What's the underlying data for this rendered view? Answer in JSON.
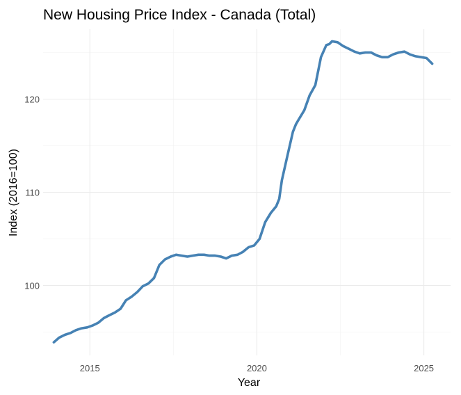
{
  "chart_data": {
    "type": "line",
    "title": "New Housing Price Index - Canada (Total)",
    "xlabel": "Year",
    "ylabel": "Index (2016=100)",
    "xlim": [
      2013.6,
      2025.8
    ],
    "ylim": [
      92.5,
      127.5
    ],
    "x_ticks": [
      2015,
      2020,
      2025
    ],
    "x_tick_labels": [
      "2015",
      "2020",
      "2025"
    ],
    "y_ticks": [
      100,
      110,
      120
    ],
    "y_tick_labels": [
      "100",
      "110",
      "120"
    ],
    "grid": true,
    "legend": "none",
    "line_color": "#4682b4",
    "series": [
      {
        "x": [
          2013.92,
          2014.08,
          2014.25,
          2014.42,
          2014.58,
          2014.75,
          2014.92,
          2015.08,
          2015.25,
          2015.42,
          2015.58,
          2015.75,
          2015.92,
          2016.08,
          2016.25,
          2016.42,
          2016.5,
          2016.58,
          2016.75,
          2016.92,
          2017.08,
          2017.25,
          2017.42,
          2017.58,
          2017.75,
          2017.92,
          2018.08,
          2018.25,
          2018.42,
          2018.58,
          2018.75,
          2018.92,
          2019.08,
          2019.25,
          2019.42,
          2019.58,
          2019.75,
          2019.92,
          2020.08,
          2020.25,
          2020.42,
          2020.58,
          2020.67,
          2020.75,
          2020.92,
          2021.08,
          2021.17,
          2021.25,
          2021.42,
          2021.58,
          2021.75,
          2021.92,
          2022.08,
          2022.17,
          2022.25,
          2022.42,
          2022.58,
          2022.75,
          2022.92,
          2023.08,
          2023.25,
          2023.42,
          2023.58,
          2023.75,
          2023.92,
          2024.08,
          2024.25,
          2024.42,
          2024.58,
          2024.75,
          2024.92,
          2025.08,
          2025.25
        ],
        "values": [
          93.9,
          94.4,
          94.7,
          94.9,
          95.2,
          95.4,
          95.5,
          95.7,
          96.0,
          96.5,
          96.8,
          97.1,
          97.5,
          98.4,
          98.8,
          99.3,
          99.6,
          99.9,
          100.2,
          100.8,
          102.2,
          102.8,
          103.1,
          103.3,
          103.2,
          103.1,
          103.2,
          103.3,
          103.3,
          103.2,
          103.2,
          103.1,
          102.9,
          103.2,
          103.3,
          103.6,
          104.1,
          104.3,
          105.0,
          106.8,
          107.8,
          108.5,
          109.3,
          111.3,
          114.0,
          116.5,
          117.3,
          117.8,
          118.8,
          120.4,
          121.5,
          124.5,
          125.8,
          125.9,
          126.2,
          126.1,
          125.7,
          125.4,
          125.1,
          124.9,
          125.0,
          125.0,
          124.7,
          124.5,
          124.5,
          124.8,
          125.0,
          125.1,
          124.8,
          124.6,
          124.5,
          124.4,
          123.8
        ]
      }
    ]
  }
}
